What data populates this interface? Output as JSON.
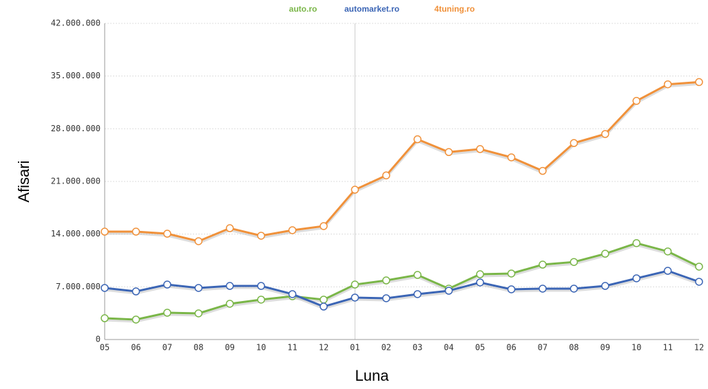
{
  "chart_data": {
    "type": "line",
    "x_label": "Luna",
    "y_label": "Afisari",
    "categories": [
      "05",
      "06",
      "07",
      "08",
      "09",
      "10",
      "11",
      "12",
      "01",
      "02",
      "03",
      "04",
      "05",
      "06",
      "07",
      "08",
      "09",
      "10",
      "11",
      "12"
    ],
    "series": [
      {
        "name": "auto.ro",
        "color": "#7ab648",
        "values": [
          2830000,
          2650000,
          3560000,
          3470000,
          4750000,
          5300000,
          5750000,
          5300000,
          7300000,
          7850000,
          8580000,
          6760000,
          8670000,
          8770000,
          9950000,
          10300000,
          11400000,
          12800000,
          11700000,
          9680000
        ]
      },
      {
        "name": "automarket.ro",
        "color": "#3b65b5",
        "values": [
          6850000,
          6390000,
          7300000,
          6850000,
          7120000,
          7120000,
          6030000,
          4380000,
          5570000,
          5480000,
          6030000,
          6480000,
          7580000,
          6670000,
          6760000,
          6760000,
          7120000,
          8130000,
          9130000,
          7670000
        ]
      },
      {
        "name": "4tuning.ro",
        "color": "#f0913a",
        "values": [
          14330000,
          14330000,
          14060000,
          13060000,
          14790000,
          13790000,
          14520000,
          15070000,
          19900000,
          21800000,
          26600000,
          24900000,
          25300000,
          24200000,
          22400000,
          26100000,
          27300000,
          31700000,
          33900000,
          34200000
        ]
      }
    ],
    "ylim": [
      0,
      42000000
    ],
    "yticks": [
      0,
      {
        "value": 7000000,
        "label": "7.000.000"
      },
      {
        "value": 14000000,
        "label": "14.000.000"
      },
      {
        "value": 21000000,
        "label": "21.000.000"
      },
      {
        "value": 28000000,
        "label": "28.000.000"
      },
      {
        "value": 35000000,
        "label": "35.000.000"
      },
      {
        "value": 42000000,
        "label": "42.000.000"
      }
    ],
    "grid": true
  }
}
